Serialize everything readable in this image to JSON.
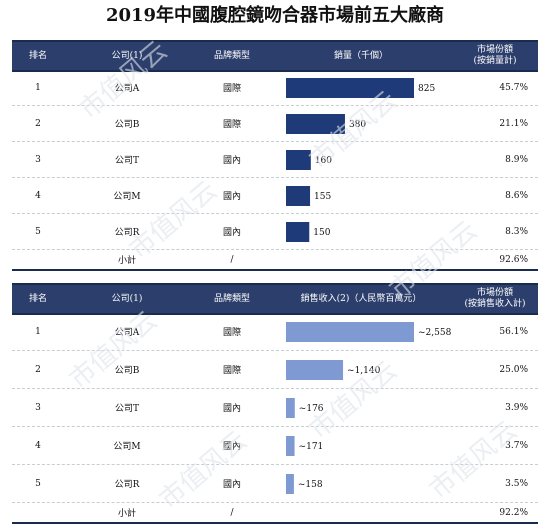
{
  "title": "2019年中國腹腔鏡吻合器市場前五大廠商",
  "watermark": "市值风云",
  "colors": {
    "header_bg": "#2c3e6b",
    "bar_volume": "#1f3a78",
    "bar_revenue": "#7f9ad3"
  },
  "chart_data": [
    {
      "type": "table",
      "headers": [
        "排名",
        "公司(1)",
        "品牌類型",
        "銷量（千個）",
        "市場份額\n(按銷量計)"
      ],
      "bar_series": "銷量（千個）",
      "rows": [
        {
          "rank": "1",
          "company": "公司A",
          "brand_type": "國際",
          "value": 825,
          "label": "825",
          "share": "45.7%"
        },
        {
          "rank": "2",
          "company": "公司B",
          "brand_type": "國際",
          "value": 380,
          "label": "380",
          "share": "21.1%"
        },
        {
          "rank": "3",
          "company": "公司T",
          "brand_type": "國內",
          "value": 160,
          "label": "160",
          "share": "8.9%"
        },
        {
          "rank": "4",
          "company": "公司M",
          "brand_type": "國內",
          "value": 155,
          "label": "155",
          "share": "8.6%"
        },
        {
          "rank": "5",
          "company": "公司R",
          "brand_type": "國內",
          "value": 150,
          "label": "150",
          "share": "8.3%"
        }
      ],
      "subtotal": {
        "label": "小計",
        "value": "/",
        "share": "92.6%"
      }
    },
    {
      "type": "table",
      "headers": [
        "排名",
        "公司(1)",
        "品牌類型",
        "銷售收入(2)（人民幣百萬元）",
        "市場份額\n(按銷售收入計)"
      ],
      "bar_series": "銷售收入（人民幣百萬元）",
      "rows": [
        {
          "rank": "1",
          "company": "公司A",
          "brand_type": "國際",
          "value": 2558,
          "label": "~2,558",
          "share": "56.1%"
        },
        {
          "rank": "2",
          "company": "公司B",
          "brand_type": "國際",
          "value": 1140,
          "label": "~1,140",
          "share": "25.0%"
        },
        {
          "rank": "3",
          "company": "公司T",
          "brand_type": "國內",
          "value": 176,
          "label": "~176",
          "share": "3.9%"
        },
        {
          "rank": "4",
          "company": "公司M",
          "brand_type": "國內",
          "value": 171,
          "label": "~171",
          "share": "3.7%"
        },
        {
          "rank": "5",
          "company": "公司R",
          "brand_type": "國內",
          "value": 158,
          "label": "~158",
          "share": "3.5%"
        }
      ],
      "subtotal": {
        "label": "小計",
        "value": "/",
        "share": "92.2%"
      }
    }
  ]
}
